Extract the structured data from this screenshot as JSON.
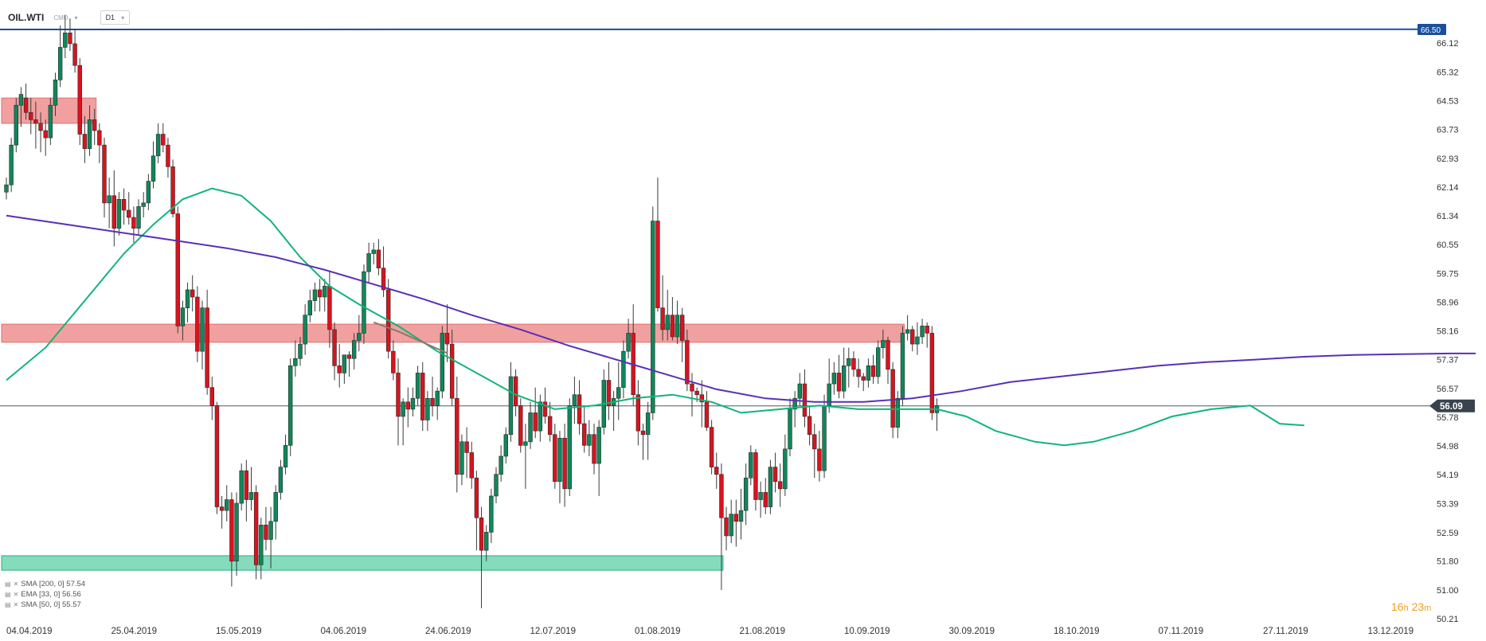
{
  "header": {
    "symbol": "OIL.WTI",
    "symbol_type": "CMD",
    "timeframe": "D1"
  },
  "indicators": [
    {
      "label": "SMA [200, 0] 57.54",
      "color": "#5a2fb5"
    },
    {
      "label": "EMA [33, 0] 56.56",
      "color": "#8a7a6a"
    },
    {
      "label": "SMA [50, 0] 55.57",
      "color": "#10b57a"
    }
  ],
  "countdown": {
    "hours": "16",
    "h_unit": "h",
    "minutes": "23",
    "m_unit": "m"
  },
  "colors": {
    "bull": "#10875a",
    "bear": "#d9131e",
    "resistance_zone": "#ef8f8f",
    "support_zone": "#6fd6b0",
    "level_line": "#1a4f9c",
    "current_price_line": "#4a5a6a"
  },
  "chart_data": {
    "type": "candlestick",
    "y_axis_ticks": [
      "66.12",
      "65.32",
      "64.53",
      "63.73",
      "62.93",
      "62.14",
      "61.34",
      "60.55",
      "59.75",
      "58.96",
      "58.16",
      "57.37",
      "56.57",
      "55.78",
      "54.98",
      "54.19",
      "53.39",
      "52.59",
      "51.80",
      "51.00",
      "50.21"
    ],
    "ylim": [
      50.21,
      66.12
    ],
    "x_axis_ticks": [
      "04.04.2019",
      "25.04.2019",
      "15.05.2019",
      "04.06.2019",
      "24.06.2019",
      "12.07.2019",
      "01.08.2019",
      "21.08.2019",
      "10.09.2019",
      "30.09.2019",
      "18.10.2019",
      "07.11.2019",
      "27.11.2019",
      "13.12.2019"
    ],
    "horizontal_level": {
      "value": 66.5,
      "label": "66.50"
    },
    "current_price": {
      "value": 56.09,
      "label": "56.09"
    },
    "zones": [
      {
        "type": "resistance",
        "low": 63.9,
        "high": 64.6,
        "from_index": 0,
        "to_index": 18
      },
      {
        "type": "resistance",
        "low": 57.85,
        "high": 58.35,
        "from_index": 0,
        "to_index": 183
      },
      {
        "type": "support",
        "low": 51.55,
        "high": 51.95,
        "from_index": 0,
        "to_index": 146
      }
    ],
    "candles": [
      [
        62.0,
        62.4,
        61.8,
        62.2
      ],
      [
        62.2,
        63.5,
        62.0,
        63.3
      ],
      [
        63.3,
        64.6,
        63.1,
        64.4
      ],
      [
        64.4,
        64.9,
        63.8,
        64.7
      ],
      [
        64.6,
        65.0,
        64.0,
        64.2
      ],
      [
        64.2,
        64.6,
        63.6,
        64.0
      ],
      [
        64.0,
        64.5,
        63.2,
        63.9
      ],
      [
        63.9,
        64.2,
        63.1,
        63.7
      ],
      [
        63.7,
        64.0,
        63.0,
        63.5
      ],
      [
        63.5,
        64.6,
        63.3,
        64.4
      ],
      [
        64.4,
        65.3,
        64.1,
        65.1
      ],
      [
        65.1,
        66.6,
        64.9,
        66.0
      ],
      [
        66.0,
        66.9,
        65.7,
        66.4
      ],
      [
        66.4,
        66.8,
        65.9,
        66.1
      ],
      [
        66.1,
        66.5,
        65.3,
        65.5
      ],
      [
        65.5,
        65.7,
        63.3,
        63.6
      ],
      [
        63.6,
        64.1,
        62.8,
        63.2
      ],
      [
        63.2,
        64.4,
        63.0,
        64.0
      ],
      [
        64.0,
        64.3,
        63.3,
        63.7
      ],
      [
        63.7,
        63.9,
        62.8,
        63.3
      ],
      [
        63.3,
        63.5,
        61.3,
        61.7
      ],
      [
        61.7,
        62.4,
        61.0,
        61.9
      ],
      [
        61.9,
        62.6,
        60.5,
        61.0
      ],
      [
        61.0,
        62.0,
        60.8,
        61.8
      ],
      [
        61.8,
        62.1,
        61.1,
        61.5
      ],
      [
        61.5,
        62.0,
        61.1,
        61.3
      ],
      [
        61.3,
        61.6,
        60.6,
        61.0
      ],
      [
        61.0,
        61.8,
        60.8,
        61.6
      ],
      [
        61.6,
        62.0,
        61.3,
        61.7
      ],
      [
        61.7,
        62.5,
        61.5,
        62.3
      ],
      [
        62.3,
        63.4,
        62.1,
        63.0
      ],
      [
        63.0,
        63.9,
        62.8,
        63.6
      ],
      [
        63.6,
        63.9,
        63.1,
        63.3
      ],
      [
        63.3,
        63.5,
        62.4,
        62.7
      ],
      [
        62.7,
        62.9,
        61.3,
        61.4
      ],
      [
        61.4,
        61.6,
        58.1,
        58.3
      ],
      [
        58.3,
        59.0,
        57.9,
        58.8
      ],
      [
        58.8,
        59.5,
        58.4,
        59.3
      ],
      [
        59.3,
        59.7,
        58.7,
        59.1
      ],
      [
        59.1,
        59.4,
        57.3,
        57.6
      ],
      [
        57.6,
        59.0,
        57.1,
        58.8
      ],
      [
        58.8,
        59.3,
        56.4,
        56.6
      ],
      [
        56.6,
        56.9,
        55.7,
        56.1
      ],
      [
        56.1,
        56.2,
        53.1,
        53.3
      ],
      [
        53.3,
        53.6,
        52.7,
        53.2
      ],
      [
        53.2,
        53.9,
        52.9,
        53.5
      ],
      [
        53.5,
        53.7,
        51.1,
        51.8
      ],
      [
        51.8,
        53.7,
        51.4,
        53.4
      ],
      [
        53.4,
        54.5,
        53.2,
        54.3
      ],
      [
        54.3,
        54.6,
        52.9,
        53.5
      ],
      [
        53.5,
        54.4,
        53.2,
        53.7
      ],
      [
        53.7,
        53.9,
        51.3,
        51.7
      ],
      [
        51.7,
        53.0,
        51.3,
        52.8
      ],
      [
        52.8,
        53.3,
        52.1,
        52.4
      ],
      [
        52.4,
        53.3,
        51.6,
        52.9
      ],
      [
        52.9,
        53.9,
        52.4,
        53.7
      ],
      [
        53.7,
        54.6,
        53.5,
        54.4
      ],
      [
        54.4,
        55.3,
        54.2,
        55.0
      ],
      [
        55.0,
        57.4,
        54.7,
        57.2
      ],
      [
        57.2,
        57.9,
        56.9,
        57.4
      ],
      [
        57.4,
        58.0,
        57.2,
        57.8
      ],
      [
        57.8,
        58.9,
        57.5,
        58.6
      ],
      [
        58.6,
        59.3,
        58.4,
        59.0
      ],
      [
        59.0,
        59.5,
        58.7,
        59.3
      ],
      [
        59.3,
        59.6,
        58.7,
        59.1
      ],
      [
        59.1,
        59.6,
        58.7,
        59.4
      ],
      [
        59.4,
        59.8,
        57.7,
        58.2
      ],
      [
        58.2,
        58.4,
        56.8,
        57.2
      ],
      [
        57.2,
        57.8,
        56.6,
        57.0
      ],
      [
        57.0,
        57.5,
        56.7,
        57.5
      ],
      [
        57.5,
        57.6,
        56.9,
        57.4
      ],
      [
        57.4,
        58.1,
        57.1,
        57.9
      ],
      [
        57.9,
        58.6,
        57.6,
        58.1
      ],
      [
        58.1,
        60.0,
        57.8,
        59.8
      ],
      [
        59.8,
        60.6,
        59.5,
        60.3
      ],
      [
        60.3,
        60.6,
        60.0,
        60.4
      ],
      [
        60.4,
        60.7,
        59.7,
        59.9
      ],
      [
        59.9,
        60.5,
        59.1,
        59.3
      ],
      [
        59.3,
        59.6,
        57.4,
        57.6
      ],
      [
        57.6,
        57.9,
        56.8,
        57.0
      ],
      [
        57.0,
        57.4,
        55.0,
        55.8
      ],
      [
        55.8,
        56.3,
        55.0,
        56.2
      ],
      [
        56.2,
        56.6,
        55.5,
        56.0
      ],
      [
        56.0,
        56.6,
        55.8,
        56.3
      ],
      [
        56.3,
        57.2,
        56.1,
        57.0
      ],
      [
        57.0,
        57.3,
        55.4,
        55.7
      ],
      [
        55.7,
        56.5,
        55.4,
        56.3
      ],
      [
        56.3,
        56.9,
        55.8,
        56.1
      ],
      [
        56.1,
        56.6,
        55.7,
        56.5
      ],
      [
        56.5,
        58.3,
        56.3,
        58.1
      ],
      [
        58.1,
        58.9,
        57.3,
        57.8
      ],
      [
        57.8,
        58.2,
        56.1,
        56.3
      ],
      [
        56.3,
        56.9,
        53.7,
        54.2
      ],
      [
        54.2,
        55.3,
        53.9,
        55.1
      ],
      [
        55.1,
        55.5,
        54.1,
        54.8
      ],
      [
        54.8,
        55.1,
        53.8,
        54.1
      ],
      [
        54.1,
        54.3,
        52.1,
        53.0
      ],
      [
        53.0,
        53.3,
        50.5,
        52.1
      ],
      [
        52.1,
        52.8,
        51.8,
        52.6
      ],
      [
        52.6,
        53.8,
        52.3,
        53.6
      ],
      [
        53.6,
        54.4,
        53.4,
        54.2
      ],
      [
        54.2,
        55.0,
        54.0,
        54.7
      ],
      [
        54.7,
        55.5,
        54.5,
        55.3
      ],
      [
        55.3,
        57.3,
        55.1,
        56.9
      ],
      [
        56.9,
        57.1,
        55.8,
        56.1
      ],
      [
        56.1,
        56.3,
        54.8,
        55.0
      ],
      [
        55.0,
        55.6,
        53.8,
        55.1
      ],
      [
        55.1,
        56.2,
        54.9,
        55.9
      ],
      [
        55.9,
        56.6,
        55.2,
        55.4
      ],
      [
        55.4,
        56.4,
        55.1,
        56.2
      ],
      [
        56.2,
        56.6,
        55.6,
        55.8
      ],
      [
        55.8,
        56.2,
        55.1,
        55.3
      ],
      [
        55.3,
        55.6,
        53.8,
        54.0
      ],
      [
        54.0,
        55.4,
        53.4,
        55.2
      ],
      [
        55.2,
        55.6,
        53.3,
        53.8
      ],
      [
        53.8,
        56.3,
        53.6,
        56.1
      ],
      [
        56.1,
        56.9,
        55.6,
        56.4
      ],
      [
        56.4,
        56.8,
        55.3,
        55.6
      ],
      [
        55.6,
        56.1,
        54.8,
        55.0
      ],
      [
        55.0,
        55.7,
        54.7,
        55.3
      ],
      [
        55.3,
        55.6,
        54.2,
        54.5
      ],
      [
        54.5,
        55.7,
        53.6,
        55.5
      ],
      [
        55.5,
        57.1,
        55.3,
        56.8
      ],
      [
        56.8,
        57.3,
        55.7,
        56.1
      ],
      [
        56.1,
        56.5,
        55.4,
        56.3
      ],
      [
        56.3,
        57.3,
        55.7,
        56.6
      ],
      [
        56.6,
        57.9,
        56.3,
        57.6
      ],
      [
        57.6,
        58.5,
        57.4,
        58.1
      ],
      [
        58.1,
        58.9,
        56.1,
        56.4
      ],
      [
        56.4,
        56.8,
        55.0,
        55.4
      ],
      [
        55.4,
        55.6,
        54.6,
        55.3
      ],
      [
        55.3,
        56.2,
        54.6,
        55.9
      ],
      [
        55.9,
        61.6,
        55.7,
        61.2
      ],
      [
        61.2,
        62.4,
        58.7,
        58.8
      ],
      [
        58.8,
        59.7,
        57.9,
        58.2
      ],
      [
        58.2,
        59.3,
        57.9,
        58.6
      ],
      [
        58.6,
        59.1,
        57.9,
        58.0
      ],
      [
        58.0,
        59.0,
        57.8,
        58.6
      ],
      [
        58.6,
        58.8,
        57.3,
        57.9
      ],
      [
        57.9,
        58.2,
        56.5,
        56.7
      ],
      [
        56.7,
        57.0,
        55.8,
        56.5
      ],
      [
        56.5,
        56.6,
        56.2,
        56.4
      ],
      [
        56.4,
        56.8,
        55.5,
        56.2
      ],
      [
        56.2,
        56.5,
        55.4,
        55.5
      ],
      [
        55.5,
        55.7,
        54.2,
        54.4
      ],
      [
        54.4,
        54.8,
        53.8,
        54.2
      ],
      [
        54.2,
        54.5,
        51.0,
        53.0
      ],
      [
        53.0,
        53.3,
        52.1,
        52.5
      ],
      [
        52.5,
        53.5,
        52.3,
        53.1
      ],
      [
        53.1,
        53.5,
        52.2,
        52.9
      ],
      [
        52.9,
        53.8,
        52.4,
        53.2
      ],
      [
        53.2,
        54.5,
        52.8,
        54.1
      ],
      [
        54.1,
        55.0,
        53.9,
        54.8
      ],
      [
        54.8,
        54.9,
        53.2,
        53.5
      ],
      [
        53.5,
        54.0,
        53.0,
        53.7
      ],
      [
        53.7,
        54.1,
        53.1,
        53.3
      ],
      [
        53.3,
        54.6,
        53.1,
        54.4
      ],
      [
        54.4,
        54.8,
        53.7,
        54.0
      ],
      [
        54.0,
        54.5,
        53.3,
        53.8
      ],
      [
        53.8,
        55.3,
        53.6,
        54.9
      ],
      [
        54.9,
        56.3,
        54.7,
        56.0
      ],
      [
        56.0,
        56.5,
        55.5,
        56.3
      ],
      [
        56.3,
        57.0,
        56.1,
        56.7
      ],
      [
        56.7,
        57.1,
        55.5,
        55.8
      ],
      [
        55.8,
        56.1,
        55.0,
        55.3
      ],
      [
        55.3,
        55.6,
        54.1,
        54.9
      ],
      [
        54.9,
        55.4,
        54.0,
        54.3
      ],
      [
        54.3,
        56.4,
        54.1,
        56.1
      ],
      [
        56.1,
        57.4,
        55.9,
        56.7
      ],
      [
        56.7,
        57.3,
        56.4,
        57.0
      ],
      [
        57.0,
        57.5,
        56.3,
        56.5
      ],
      [
        56.5,
        57.7,
        56.3,
        57.2
      ],
      [
        57.2,
        57.7,
        56.6,
        57.4
      ],
      [
        57.4,
        57.6,
        56.9,
        57.1
      ],
      [
        57.1,
        57.4,
        56.6,
        56.9
      ],
      [
        56.9,
        57.0,
        56.5,
        56.8
      ],
      [
        56.8,
        57.4,
        56.6,
        57.2
      ],
      [
        57.2,
        57.5,
        56.7,
        56.9
      ],
      [
        56.9,
        57.9,
        56.7,
        57.7
      ],
      [
        57.7,
        58.2,
        57.4,
        57.9
      ],
      [
        57.9,
        58.0,
        56.7,
        57.1
      ],
      [
        57.1,
        57.3,
        55.2,
        55.5
      ],
      [
        55.5,
        56.5,
        55.2,
        56.3
      ],
      [
        56.3,
        58.3,
        56.1,
        58.1
      ],
      [
        58.1,
        58.6,
        57.9,
        58.2
      ],
      [
        58.2,
        58.3,
        57.6,
        57.8
      ],
      [
        57.8,
        58.4,
        57.5,
        58.0
      ],
      [
        58.0,
        58.5,
        57.8,
        58.3
      ],
      [
        58.3,
        58.4,
        57.7,
        58.1
      ],
      [
        58.1,
        58.3,
        55.7,
        55.9
      ],
      [
        55.9,
        56.3,
        55.4,
        56.1
      ]
    ],
    "sma200": [
      [
        0,
        61.35
      ],
      [
        15,
        61.05
      ],
      [
        30,
        60.75
      ],
      [
        45,
        60.45
      ],
      [
        55,
        60.2
      ],
      [
        65,
        59.85
      ],
      [
        75,
        59.45
      ],
      [
        85,
        59.05
      ],
      [
        95,
        58.6
      ],
      [
        105,
        58.2
      ],
      [
        115,
        57.75
      ],
      [
        125,
        57.35
      ],
      [
        135,
        56.95
      ],
      [
        145,
        56.55
      ],
      [
        155,
        56.3
      ],
      [
        165,
        56.2
      ],
      [
        175,
        56.2
      ],
      [
        185,
        56.3
      ],
      [
        195,
        56.5
      ],
      [
        205,
        56.75
      ],
      [
        215,
        56.9
      ],
      [
        225,
        57.05
      ],
      [
        235,
        57.2
      ],
      [
        245,
        57.3
      ],
      [
        255,
        57.37
      ],
      [
        265,
        57.45
      ],
      [
        275,
        57.5
      ],
      [
        285,
        57.52
      ],
      [
        295,
        57.54
      ],
      [
        300,
        57.54
      ]
    ],
    "ema33": [
      [
        75,
        58.4
      ],
      [
        80,
        58.15
      ],
      [
        85,
        57.85
      ],
      [
        90,
        57.55
      ]
    ],
    "sma50": [
      [
        0,
        56.8
      ],
      [
        8,
        57.7
      ],
      [
        16,
        59.0
      ],
      [
        24,
        60.3
      ],
      [
        30,
        61.1
      ],
      [
        36,
        61.8
      ],
      [
        42,
        62.1
      ],
      [
        48,
        61.9
      ],
      [
        54,
        61.2
      ],
      [
        60,
        60.2
      ],
      [
        66,
        59.4
      ],
      [
        72,
        58.9
      ],
      [
        80,
        58.3
      ],
      [
        88,
        57.6
      ],
      [
        96,
        57.0
      ],
      [
        104,
        56.4
      ],
      [
        112,
        56.0
      ],
      [
        120,
        56.1
      ],
      [
        128,
        56.3
      ],
      [
        136,
        56.4
      ],
      [
        144,
        56.2
      ],
      [
        150,
        55.9
      ],
      [
        158,
        56.0
      ],
      [
        166,
        56.1
      ],
      [
        174,
        56.0
      ],
      [
        182,
        56.0
      ],
      [
        190,
        56.0
      ],
      [
        196,
        55.8
      ],
      [
        202,
        55.4
      ],
      [
        210,
        55.1
      ],
      [
        216,
        55.0
      ],
      [
        222,
        55.1
      ],
      [
        230,
        55.4
      ],
      [
        238,
        55.8
      ],
      [
        246,
        56.0
      ],
      [
        254,
        56.1
      ],
      [
        260,
        55.6
      ],
      [
        265,
        55.55
      ]
    ]
  }
}
